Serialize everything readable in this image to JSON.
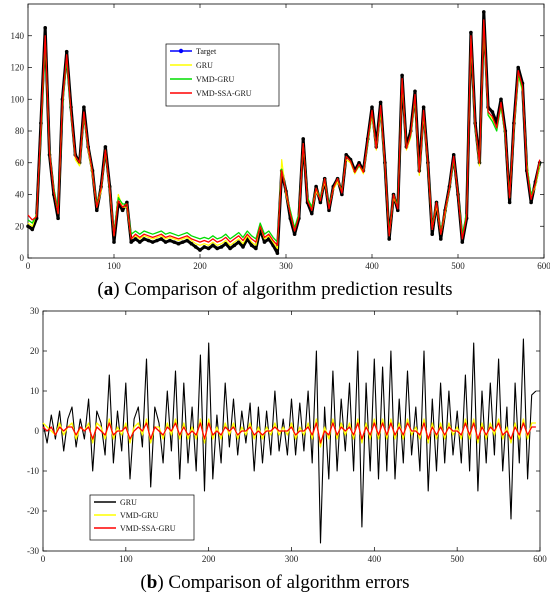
{
  "chart_data": [
    {
      "type": "line",
      "title": "",
      "xlabel": "",
      "ylabel": "",
      "xlim": [
        0,
        600
      ],
      "ylim": [
        0,
        160
      ],
      "x_ticks": [
        0,
        100,
        200,
        300,
        400,
        500,
        600
      ],
      "y_ticks": [
        0,
        20,
        40,
        60,
        80,
        100,
        120,
        140
      ],
      "grid": false,
      "legend_position": "top-center",
      "x": [
        0,
        5,
        10,
        15,
        20,
        25,
        30,
        35,
        40,
        45,
        50,
        55,
        60,
        65,
        70,
        75,
        80,
        85,
        90,
        95,
        100,
        105,
        110,
        115,
        120,
        125,
        130,
        135,
        140,
        145,
        150,
        155,
        160,
        165,
        170,
        175,
        180,
        185,
        190,
        195,
        200,
        205,
        210,
        215,
        220,
        225,
        230,
        235,
        240,
        245,
        250,
        255,
        260,
        265,
        270,
        275,
        280,
        285,
        290,
        295,
        300,
        305,
        310,
        315,
        320,
        325,
        330,
        335,
        340,
        345,
        350,
        355,
        360,
        365,
        370,
        375,
        380,
        385,
        390,
        395,
        400,
        405,
        410,
        415,
        420,
        425,
        430,
        435,
        440,
        445,
        450,
        455,
        460,
        465,
        470,
        475,
        480,
        485,
        490,
        495,
        500,
        505,
        510,
        515,
        520,
        525,
        530,
        535,
        540,
        545,
        550,
        555,
        560,
        565,
        570,
        575,
        580,
        585,
        590,
        595
      ],
      "series": [
        {
          "name": "Target",
          "color": "#0000ff",
          "marker": "dot",
          "values": [
            20,
            18,
            25,
            85,
            145,
            65,
            40,
            25,
            100,
            130,
            95,
            65,
            60,
            95,
            70,
            55,
            30,
            45,
            70,
            45,
            10,
            35,
            30,
            35,
            10,
            12,
            10,
            12,
            11,
            10,
            11,
            12,
            10,
            11,
            10,
            9,
            10,
            11,
            9,
            7,
            5,
            7,
            6,
            8,
            6,
            7,
            9,
            6,
            8,
            10,
            7,
            12,
            8,
            6,
            18,
            10,
            12,
            8,
            3,
            55,
            42,
            25,
            15,
            25,
            75,
            35,
            28,
            45,
            35,
            50,
            30,
            45,
            50,
            40,
            65,
            62,
            55,
            60,
            55,
            75,
            95,
            70,
            98,
            60,
            12,
            40,
            30,
            115,
            70,
            80,
            105,
            55,
            95,
            60,
            15,
            35,
            12,
            30,
            45,
            65,
            40,
            10,
            25,
            142,
            85,
            60,
            155,
            95,
            92,
            85,
            100,
            80,
            35,
            85,
            120,
            110,
            55,
            35,
            48,
            60
          ]
        },
        {
          "name": "GRU",
          "color": "#ffff00",
          "values": [
            22,
            20,
            28,
            80,
            138,
            68,
            42,
            28,
            95,
            126,
            92,
            62,
            58,
            90,
            68,
            52,
            32,
            42,
            68,
            42,
            14,
            40,
            32,
            32,
            12,
            14,
            12,
            14,
            13,
            12,
            13,
            14,
            12,
            13,
            12,
            11,
            12,
            13,
            11,
            9,
            8,
            9,
            8,
            10,
            8,
            9,
            11,
            8,
            10,
            12,
            9,
            14,
            10,
            8,
            20,
            12,
            14,
            10,
            6,
            62,
            40,
            28,
            17,
            27,
            72,
            38,
            30,
            42,
            37,
            48,
            32,
            43,
            48,
            42,
            62,
            60,
            53,
            58,
            53,
            72,
            90,
            68,
            92,
            58,
            14,
            38,
            32,
            110,
            68,
            76,
            100,
            52,
            90,
            58,
            18,
            33,
            15,
            28,
            43,
            62,
            40,
            14,
            28,
            135,
            82,
            58,
            145,
            90,
            88,
            82,
            95,
            77,
            38,
            80,
            115,
            105,
            60,
            38,
            45,
            58
          ]
        },
        {
          "name": "VMD-GRU",
          "color": "#00dd00",
          "values": [
            24,
            22,
            27,
            78,
            135,
            66,
            44,
            30,
            96,
            125,
            90,
            64,
            60,
            90,
            70,
            54,
            34,
            44,
            66,
            44,
            16,
            38,
            34,
            34,
            15,
            17,
            15,
            17,
            16,
            15,
            16,
            17,
            15,
            16,
            15,
            14,
            15,
            16,
            14,
            13,
            12,
            13,
            12,
            14,
            12,
            13,
            15,
            12,
            14,
            16,
            13,
            17,
            14,
            12,
            22,
            15,
            17,
            13,
            10,
            56,
            42,
            30,
            19,
            28,
            70,
            38,
            32,
            44,
            38,
            50,
            33,
            44,
            50,
            42,
            64,
            61,
            54,
            58,
            55,
            72,
            92,
            69,
            94,
            60,
            16,
            40,
            33,
            112,
            69,
            77,
            101,
            54,
            92,
            60,
            20,
            35,
            17,
            30,
            44,
            62,
            41,
            15,
            28,
            138,
            82,
            60,
            148,
            90,
            86,
            80,
            96,
            76,
            40,
            82,
            116,
            106,
            58,
            40,
            46,
            60
          ]
        },
        {
          "name": "VMD-SSA-GRU",
          "color": "#ff0000",
          "values": [
            27,
            24,
            26,
            82,
            140,
            66,
            42,
            28,
            98,
            128,
            92,
            64,
            60,
            92,
            70,
            54,
            32,
            44,
            68,
            44,
            14,
            36,
            32,
            34,
            12,
            15,
            13,
            15,
            14,
            13,
            14,
            15,
            13,
            14,
            13,
            12,
            13,
            14,
            12,
            11,
            10,
            11,
            10,
            12,
            10,
            11,
            13,
            10,
            12,
            14,
            11,
            15,
            12,
            10,
            20,
            13,
            15,
            11,
            8,
            55,
            42,
            28,
            17,
            26,
            72,
            36,
            30,
            44,
            36,
            50,
            31,
            44,
            50,
            41,
            64,
            61,
            54,
            59,
            54,
            74,
            93,
            69,
            96,
            60,
            14,
            40,
            31,
            113,
            69,
            78,
            103,
            54,
            93,
            60,
            18,
            35,
            15,
            30,
            44,
            64,
            40,
            12,
            26,
            140,
            84,
            60,
            150,
            92,
            89,
            82,
            98,
            78,
            38,
            83,
            118,
            108,
            56,
            37,
            47,
            62
          ]
        }
      ]
    },
    {
      "type": "line",
      "title": "",
      "xlabel": "",
      "ylabel": "",
      "xlim": [
        0,
        600
      ],
      "ylim": [
        -30,
        30
      ],
      "x_ticks": [
        0,
        100,
        200,
        300,
        400,
        500,
        600
      ],
      "y_ticks": [
        -30,
        -20,
        -10,
        0,
        10,
        20,
        30
      ],
      "grid": false,
      "legend_position": "bottom-left",
      "x": [
        0,
        5,
        10,
        15,
        20,
        25,
        30,
        35,
        40,
        45,
        50,
        55,
        60,
        65,
        70,
        75,
        80,
        85,
        90,
        95,
        100,
        105,
        110,
        115,
        120,
        125,
        130,
        135,
        140,
        145,
        150,
        155,
        160,
        165,
        170,
        175,
        180,
        185,
        190,
        195,
        200,
        205,
        210,
        215,
        220,
        225,
        230,
        235,
        240,
        245,
        250,
        255,
        260,
        265,
        270,
        275,
        280,
        285,
        290,
        295,
        300,
        305,
        310,
        315,
        320,
        325,
        330,
        335,
        340,
        345,
        350,
        355,
        360,
        365,
        370,
        375,
        380,
        385,
        390,
        395,
        400,
        405,
        410,
        415,
        420,
        425,
        430,
        435,
        440,
        445,
        450,
        455,
        460,
        465,
        470,
        475,
        480,
        485,
        490,
        495,
        500,
        505,
        510,
        515,
        520,
        525,
        530,
        535,
        540,
        545,
        550,
        555,
        560,
        565,
        570,
        575,
        580,
        585,
        590,
        595
      ],
      "series": [
        {
          "name": "GRU",
          "color": "#000000",
          "values": [
            2,
            -3,
            4,
            -2,
            5,
            -5,
            3,
            6,
            -4,
            3,
            -2,
            8,
            -10,
            5,
            2,
            -6,
            14,
            -8,
            5,
            -5,
            12,
            -12,
            3,
            6,
            -4,
            18,
            -14,
            6,
            2,
            -8,
            10,
            -5,
            15,
            -12,
            12,
            -8,
            6,
            -10,
            19,
            -15,
            22,
            -12,
            4,
            -8,
            12,
            -4,
            8,
            -6,
            5,
            -3,
            7,
            -10,
            6,
            -8,
            5,
            -6,
            10,
            -5,
            3,
            -6,
            8,
            -6,
            7,
            -5,
            10,
            -8,
            20,
            -28,
            6,
            -12,
            15,
            -10,
            8,
            -5,
            12,
            -10,
            20,
            -24,
            12,
            -10,
            18,
            -12,
            16,
            -10,
            20,
            -12,
            8,
            -8,
            15,
            -6,
            6,
            -10,
            20,
            -15,
            8,
            -10,
            12,
            -8,
            10,
            -6,
            5,
            -8,
            14,
            -10,
            22,
            -15,
            10,
            -8,
            12,
            -6,
            18,
            -10,
            6,
            -22,
            12,
            -8,
            23,
            -12,
            9,
            10
          ]
        },
        {
          "name": "VMD-GRU",
          "color": "#ffff00",
          "values": [
            2,
            1,
            0,
            -1,
            2,
            -1,
            1,
            2,
            -2,
            1,
            0,
            2,
            -3,
            2,
            1,
            -2,
            3,
            -2,
            1,
            -1,
            2,
            -3,
            1,
            2,
            -1,
            3,
            -3,
            1,
            1,
            -2,
            2,
            -1,
            3,
            -2,
            2,
            -2,
            1,
            -2,
            3,
            -3,
            3,
            -2,
            1,
            -2,
            2,
            -1,
            2,
            -2,
            1,
            -1,
            2,
            -2,
            1,
            -2,
            1,
            -1,
            2,
            -1,
            1,
            -1,
            2,
            -2,
            1,
            -1,
            2,
            -2,
            3,
            -4,
            1,
            -2,
            3,
            -2,
            2,
            -1,
            2,
            -2,
            3,
            -3,
            2,
            -2,
            3,
            -2,
            3,
            -2,
            3,
            -2,
            2,
            -2,
            3,
            -1,
            1,
            -2,
            3,
            -3,
            2,
            -2,
            2,
            -2,
            2,
            -1,
            1,
            -2,
            3,
            -2,
            3,
            -3,
            2,
            -2,
            2,
            -1,
            3,
            -2,
            1,
            -3,
            2,
            -2,
            3,
            -2,
            2,
            2
          ]
        },
        {
          "name": "VMD-SSA-GRU",
          "color": "#ff0000",
          "values": [
            1,
            0,
            1,
            -1,
            1,
            0,
            1,
            1,
            -1,
            1,
            0,
            1,
            -2,
            1,
            0,
            -1,
            2,
            -1,
            0,
            0,
            1,
            -2,
            0,
            1,
            0,
            2,
            -2,
            1,
            0,
            -1,
            1,
            0,
            2,
            -1,
            1,
            -1,
            0,
            -1,
            2,
            -2,
            2,
            -1,
            0,
            -1,
            1,
            0,
            1,
            -1,
            0,
            0,
            1,
            -1,
            0,
            -1,
            0,
            0,
            1,
            0,
            0,
            0,
            1,
            -1,
            0,
            0,
            1,
            -1,
            2,
            -3,
            0,
            -1,
            2,
            -1,
            1,
            0,
            1,
            -1,
            2,
            -2,
            1,
            -1,
            2,
            -1,
            2,
            -1,
            2,
            -1,
            1,
            -1,
            2,
            0,
            0,
            -1,
            2,
            -2,
            1,
            -1,
            1,
            -1,
            1,
            0,
            0,
            -1,
            2,
            -1,
            2,
            -2,
            1,
            -1,
            1,
            0,
            2,
            -1,
            0,
            -2,
            1,
            -1,
            2,
            -1,
            1,
            1
          ]
        }
      ]
    }
  ],
  "captions": {
    "a_letter": "a",
    "a_text": " Comparison of algorithm prediction results",
    "b_letter": "b",
    "b_text": " Comparison of algorithm errors"
  }
}
